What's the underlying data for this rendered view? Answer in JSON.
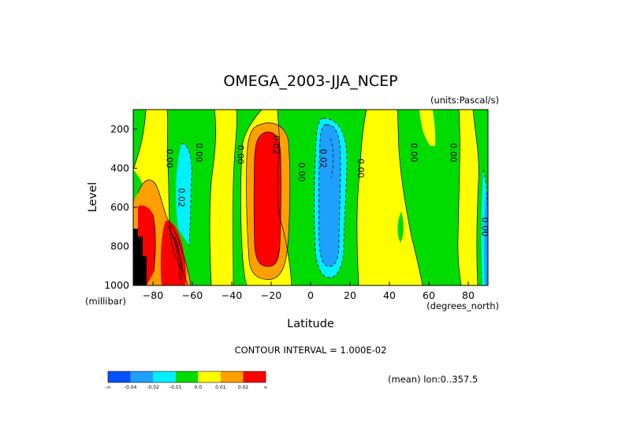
{
  "chart_data": {
    "type": "heatmap",
    "title": "OMEGA_2003-JJA_NCEP",
    "units_note": "(units:Pascal/s)",
    "xlabel": "Latitude",
    "x_units": "(degrees_north)",
    "ylabel": "Level",
    "y_units": "(millibar)",
    "xlim": [
      -90,
      90
    ],
    "ylim": [
      1000,
      100
    ],
    "x_ticks": [
      -80,
      -60,
      -40,
      -20,
      0,
      20,
      40,
      60,
      80
    ],
    "x_tick_labels": [
      "−80",
      "−60",
      "−40",
      "−20",
      "0",
      "20",
      "40",
      "60",
      "80"
    ],
    "y_ticks": [
      200,
      400,
      600,
      800,
      1000
    ],
    "y_tick_labels": [
      "200",
      "400",
      "600",
      "800",
      "1000"
    ],
    "contour_interval_text": "CONTOUR INTERVAL = 1.000E-02",
    "mean_text": "(mean) lon:0..357.5",
    "colorbar": {
      "colors": [
        "#0050ff",
        "#1ea0ff",
        "#00f0ff",
        "#00dc00",
        "#ffff00",
        "#ffa000",
        "#ff0000"
      ],
      "tick_labels": [
        "-∞",
        "-0.04",
        "-0.02",
        "-0.01",
        "0.0",
        "0.01",
        "0.02",
        "∞"
      ]
    },
    "contour_labels": [
      {
        "text": "0.00",
        "lat": -73,
        "level": 350
      },
      {
        "text": "0.00",
        "lat": -58,
        "level": 320
      },
      {
        "text": "0.00",
        "lat": -37,
        "level": 330
      },
      {
        "text": "0.02",
        "lat": -67,
        "level": 550
      },
      {
        "text": "0.02",
        "lat": -19,
        "level": 280
      },
      {
        "text": "0.00",
        "lat": -6,
        "level": 420
      },
      {
        "text": "0.02",
        "lat": 5,
        "level": 350
      },
      {
        "text": "0.00",
        "lat": 24,
        "level": 400
      },
      {
        "text": "0.00",
        "lat": 51,
        "level": 320
      },
      {
        "text": "0.00",
        "lat": 71,
        "level": 320
      },
      {
        "text": "0.00",
        "lat": 87,
        "level": 700
      }
    ],
    "regions": [
      {
        "category": "0.0 to 0.01",
        "color": "#ffff00",
        "role": "background"
      },
      {
        "category": "-0.01 to 0.0",
        "color": "#00dc00"
      },
      {
        "category": "-0.02 to -0.01",
        "color": "#00f0ff"
      },
      {
        "category": "-0.04 to -0.02",
        "color": "#1ea0ff"
      },
      {
        "category": "0.01 to 0.02",
        "color": "#ffa000"
      },
      {
        "category": ">0.02",
        "color": "#ff0000"
      },
      {
        "category": "below ground",
        "color": "#000000"
      }
    ]
  }
}
